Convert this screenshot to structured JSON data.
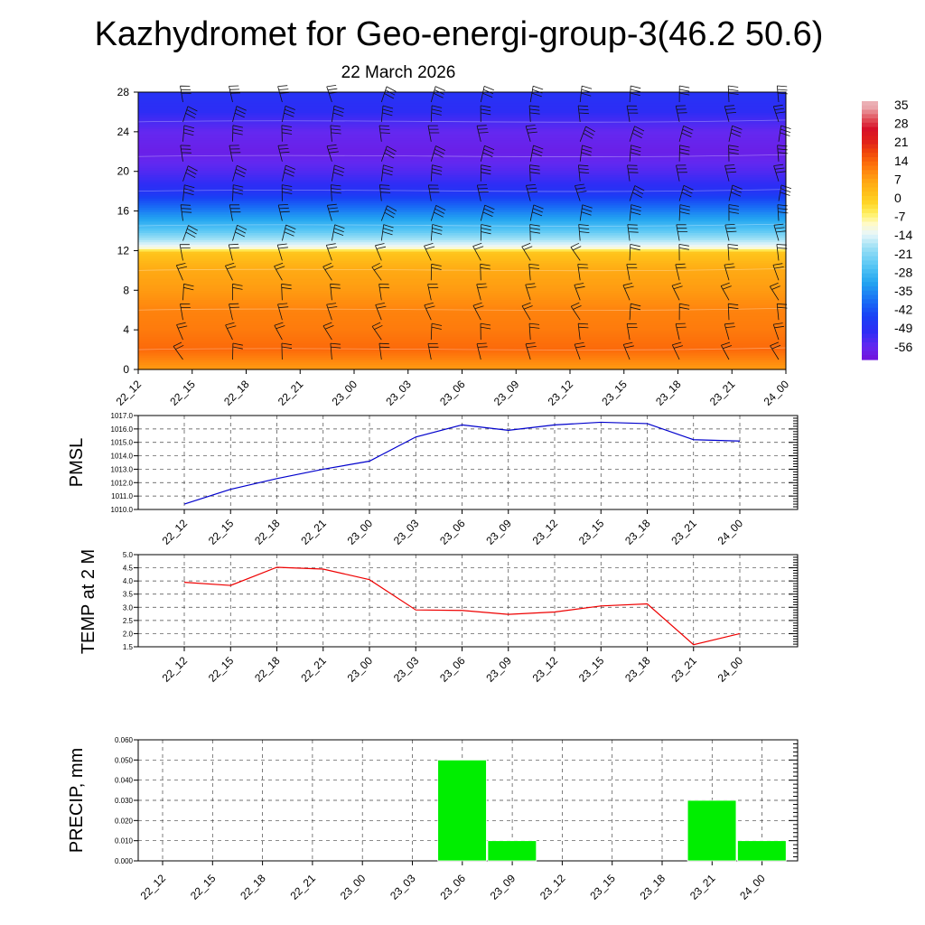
{
  "title": "Kazhydromet for Geo-energi-group-3(46.2 50.6)",
  "date": "22 March 2026",
  "chart_data": [
    {
      "type": "heatmap",
      "name": "temperature-cross-section",
      "x_ticks": [
        "22_12",
        "22_15",
        "22_18",
        "22_21",
        "23_00",
        "23_03",
        "23_06",
        "23_09",
        "23_12",
        "23_15",
        "23_18",
        "23_21",
        "24_00"
      ],
      "y_ticks": [
        0,
        4,
        8,
        12,
        16,
        20,
        24,
        28
      ],
      "ylim": [
        0,
        28
      ],
      "colorbar": {
        "labels": [
          35,
          28,
          21,
          14,
          7,
          0,
          -7,
          -14,
          -21,
          -28,
          -35,
          -42,
          -49,
          -56
        ]
      },
      "temperature_profile": [
        {
          "y": 0,
          "t": 8
        },
        {
          "y": 2,
          "t": 14
        },
        {
          "y": 4,
          "t": 12
        },
        {
          "y": 6,
          "t": 11
        },
        {
          "y": 8,
          "t": 8
        },
        {
          "y": 10,
          "t": 6
        },
        {
          "y": 11.8,
          "t": 1
        },
        {
          "y": 12.3,
          "t": -12
        },
        {
          "y": 14,
          "t": -26
        },
        {
          "y": 16,
          "t": -38
        },
        {
          "y": 18,
          "t": -50
        },
        {
          "y": 20,
          "t": -56
        },
        {
          "y": 22,
          "t": -60
        },
        {
          "y": 24,
          "t": -58
        },
        {
          "y": 26,
          "t": -52
        },
        {
          "y": 28,
          "t": -50
        }
      ],
      "grid": false
    },
    {
      "type": "line",
      "ylabel": "PMSL",
      "x": [
        "22_12",
        "22_15",
        "22_18",
        "22_21",
        "23_00",
        "23_03",
        "23_06",
        "23_09",
        "23_12",
        "23_15",
        "23_18",
        "23_21",
        "24_00"
      ],
      "values": [
        1010.4,
        1011.5,
        1012.3,
        1013.0,
        1013.6,
        1015.4,
        1016.3,
        1015.9,
        1016.3,
        1016.5,
        1016.4,
        1015.2,
        1015.1
      ],
      "ylim": [
        1010.0,
        1017.0
      ],
      "y_ticks": [
        "1010.0",
        "1011.0",
        "1012.0",
        "1013.0",
        "1014.0",
        "1015.0",
        "1016.0",
        "1017.0"
      ],
      "color": "#0000cc",
      "grid": true
    },
    {
      "type": "line",
      "ylabel": "TEMP at 2 M",
      "x": [
        "22_12",
        "22_15",
        "22_18",
        "22_21",
        "23_00",
        "23_03",
        "23_06",
        "23_09",
        "23_12",
        "23_15",
        "23_18",
        "23_21",
        "24_00"
      ],
      "values": [
        3.95,
        3.83,
        4.52,
        4.45,
        4.05,
        2.9,
        2.88,
        2.73,
        2.82,
        3.05,
        3.13,
        1.58,
        2.0
      ],
      "ylim": [
        1.5,
        5.0
      ],
      "y_ticks": [
        "1.5",
        "2.0",
        "2.5",
        "3.0",
        "3.5",
        "4.0",
        "4.5",
        "5.0"
      ],
      "color": "#ee0000",
      "grid": true
    },
    {
      "type": "bar",
      "ylabel": "PRECIP, mm",
      "categories": [
        "22_12",
        "22_15",
        "22_18",
        "22_21",
        "23_00",
        "23_03",
        "23_06",
        "23_09",
        "23_12",
        "23_15",
        "23_18",
        "23_21",
        "24_00"
      ],
      "values": [
        0,
        0,
        0,
        0,
        0,
        0,
        0.05,
        0.01,
        0,
        0,
        0,
        0.03,
        0.01
      ],
      "ylim": [
        0,
        0.06
      ],
      "y_ticks": [
        "0.000",
        "0.010",
        "0.020",
        "0.030",
        "0.040",
        "0.050",
        "0.060"
      ],
      "color": "#00ee00",
      "grid": true
    }
  ]
}
